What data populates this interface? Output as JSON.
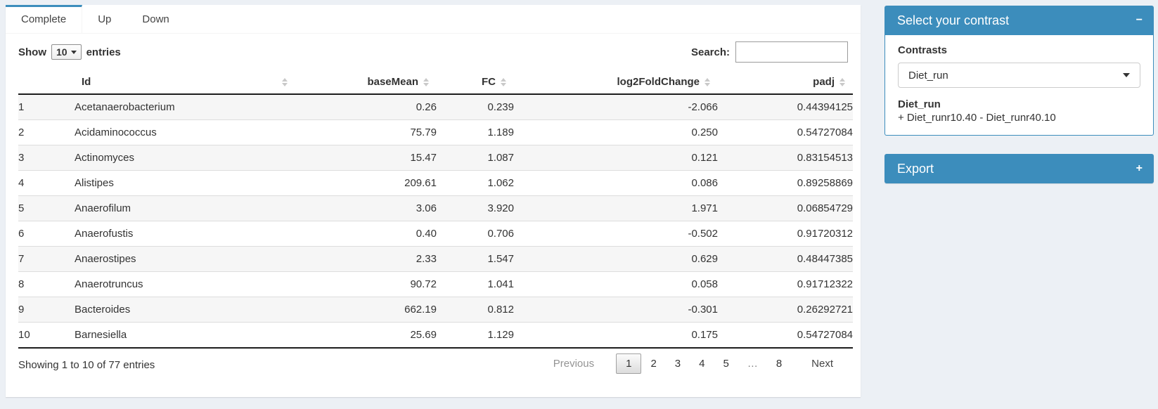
{
  "colors": {
    "accent": "#3c8dbc",
    "page_bg": "#ecf0f5"
  },
  "tabs": [
    {
      "label": "Complete",
      "active": true
    },
    {
      "label": "Up",
      "active": false
    },
    {
      "label": "Down",
      "active": false
    }
  ],
  "controls": {
    "show_label": "Show",
    "page_length": "10",
    "entries_label": "entries",
    "search_label": "Search:",
    "search_value": ""
  },
  "table": {
    "columns": [
      "Id",
      "baseMean",
      "FC",
      "log2FoldChange",
      "padj"
    ],
    "rows": [
      {
        "n": "1",
        "id": "Acetanaerobacterium",
        "basemean": "0.26",
        "fc": "0.239",
        "log2fc": "-2.066",
        "padj": "0.44394125"
      },
      {
        "n": "2",
        "id": "Acidaminococcus",
        "basemean": "75.79",
        "fc": "1.189",
        "log2fc": "0.250",
        "padj": "0.54727084"
      },
      {
        "n": "3",
        "id": "Actinomyces",
        "basemean": "15.47",
        "fc": "1.087",
        "log2fc": "0.121",
        "padj": "0.83154513"
      },
      {
        "n": "4",
        "id": "Alistipes",
        "basemean": "209.61",
        "fc": "1.062",
        "log2fc": "0.086",
        "padj": "0.89258869"
      },
      {
        "n": "5",
        "id": "Anaerofilum",
        "basemean": "3.06",
        "fc": "3.920",
        "log2fc": "1.971",
        "padj": "0.06854729"
      },
      {
        "n": "6",
        "id": "Anaerofustis",
        "basemean": "0.40",
        "fc": "0.706",
        "log2fc": "-0.502",
        "padj": "0.91720312"
      },
      {
        "n": "7",
        "id": "Anaerostipes",
        "basemean": "2.33",
        "fc": "1.547",
        "log2fc": "0.629",
        "padj": "0.48447385"
      },
      {
        "n": "8",
        "id": "Anaerotruncus",
        "basemean": "90.72",
        "fc": "1.041",
        "log2fc": "0.058",
        "padj": "0.91712322"
      },
      {
        "n": "9",
        "id": "Bacteroides",
        "basemean": "662.19",
        "fc": "0.812",
        "log2fc": "-0.301",
        "padj": "0.26292721"
      },
      {
        "n": "10",
        "id": "Barnesiella",
        "basemean": "25.69",
        "fc": "1.129",
        "log2fc": "0.175",
        "padj": "0.54727084"
      }
    ],
    "info": "Showing 1 to 10 of 77 entries"
  },
  "pagination": {
    "previous": "Previous",
    "pages": [
      "1",
      "2",
      "3",
      "4",
      "5",
      "…",
      "8"
    ],
    "active_page": "1",
    "next": "Next"
  },
  "contrast_panel": {
    "title": "Select your contrast",
    "collapse_icon": "−",
    "contrasts_label": "Contrasts",
    "selected_contrast": "Diet_run",
    "contrast_name": "Diet_run",
    "contrast_formula": "+ Diet_runr10.40 - Diet_runr40.10"
  },
  "export_panel": {
    "title": "Export",
    "expand_icon": "+"
  }
}
